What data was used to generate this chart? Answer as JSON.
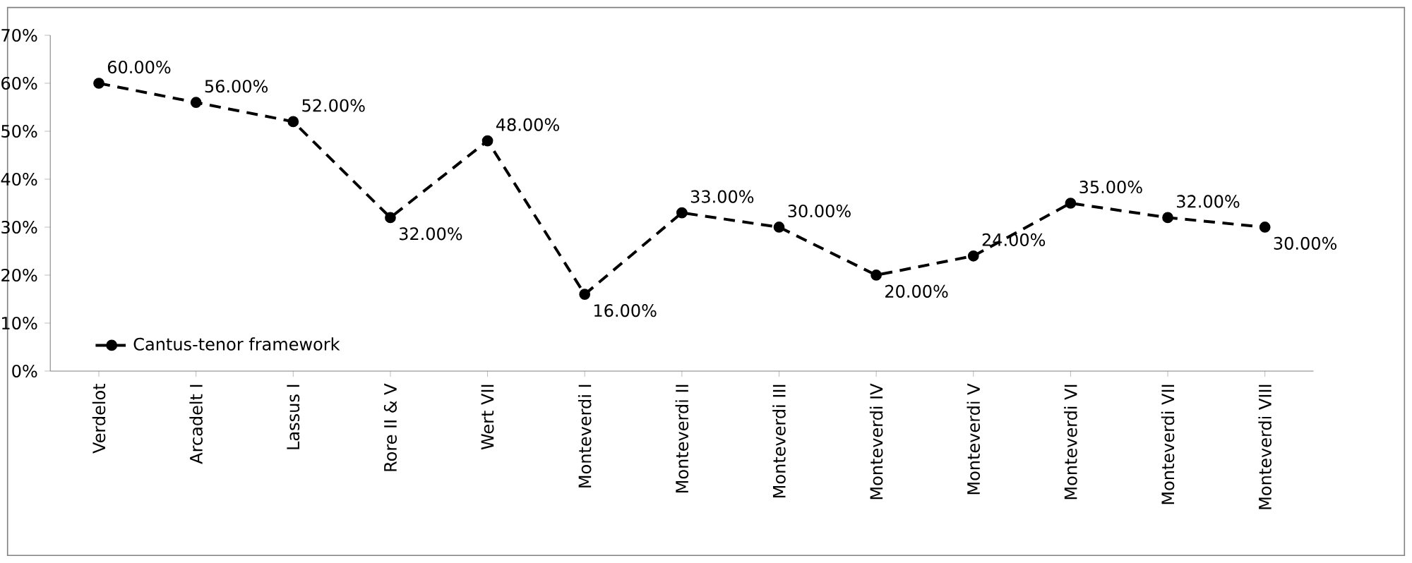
{
  "chart_data": {
    "type": "line",
    "categories": [
      "Verdelot",
      "Arcadelt I",
      "Lassus I",
      "Rore II & V",
      "Wert VII",
      "Monteverdi I",
      "Monteverdi II",
      "Monteverdi III",
      "Monteverdi IV",
      "Monteverdi V",
      "Monteverdi VI",
      "Monteverdi VII",
      "Monteverdi VIII"
    ],
    "series": [
      {
        "name": "Cantus-tenor framework",
        "color": "#000000",
        "values": [
          60,
          56,
          52,
          32,
          48,
          16,
          33,
          30,
          20,
          24,
          35,
          32,
          30
        ],
        "value_labels": [
          "60.00%",
          "56.00%",
          "52.00%",
          "32.00%",
          "48.00%",
          "16.00%",
          "33.00%",
          "30.00%",
          "20.00%",
          "24.00%",
          "35.00%",
          "32.00%",
          "30.00%"
        ]
      }
    ],
    "ylim": [
      0,
      70
    ],
    "yticks": [
      {
        "value": 0,
        "label": "0%"
      },
      {
        "value": 10,
        "label": "10%"
      },
      {
        "value": 20,
        "label": "20%"
      },
      {
        "value": 30,
        "label": "30%"
      },
      {
        "value": 40,
        "label": "40%"
      },
      {
        "value": 50,
        "label": "50%"
      },
      {
        "value": 60,
        "label": "60%"
      },
      {
        "value": 70,
        "label": "70%"
      }
    ],
    "grid": false,
    "legend": "bottom left",
    "marker": "circle",
    "line_style": "dashed"
  }
}
